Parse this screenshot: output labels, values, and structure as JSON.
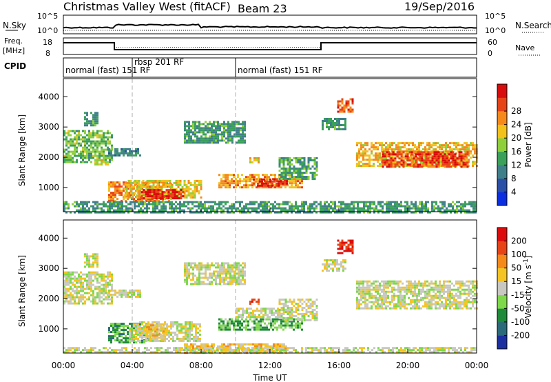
{
  "header": {
    "title": "Christmas Valley West (fitACF)",
    "beam": "Beam 23",
    "date": "19/Sep/2016"
  },
  "strips": {
    "nsky_label": "N.Sky",
    "nsearch_label": "N.Search",
    "freq_label": "Freq.",
    "freq_unit": "[MHz]",
    "nave_label": "Nave",
    "cpid_label": "CPID",
    "noise_ticks_left": [
      "10^5",
      "10^0"
    ],
    "noise_ticks_right": [
      "10^5",
      "10^0"
    ],
    "freq_ticks": [
      "18",
      "8"
    ],
    "nave_ticks": [
      "60",
      "0"
    ]
  },
  "cpid_segments": [
    {
      "start_h": 0.0,
      "end_h": 4.0,
      "label": "normal (fast)  151  RF"
    },
    {
      "start_h": 4.0,
      "end_h": 10.0,
      "label": "rbsp  201  RF"
    },
    {
      "start_h": 10.0,
      "end_h": 24.0,
      "label": "normal (fast)  151  RF"
    }
  ],
  "chart_data": [
    {
      "type": "heatmap",
      "panel": "power",
      "ylabel": "Slant Range [km]",
      "y_ticks": [
        "1000",
        "2000",
        "3000",
        "4000"
      ],
      "ylim": [
        200,
        4600
      ],
      "xlim_h": [
        0,
        24
      ],
      "colorbar": {
        "label": "Power [dB]",
        "ticks": [
          "4",
          "8",
          "12",
          "16",
          "20",
          "24",
          "28"
        ],
        "colors": [
          "#0a2ee0",
          "#2a4fa6",
          "#3f7f8a",
          "#3aa05a",
          "#8ecf3a",
          "#f2c21a",
          "#f58a1a",
          "#e64417",
          "#d80c0c"
        ]
      },
      "regions": [
        {
          "x0_h": 0.0,
          "x1_h": 2.8,
          "y0": 1850,
          "y1": 2900,
          "level": 0.45
        },
        {
          "x0_h": 1.8,
          "x1_h": 2.6,
          "y0": 1750,
          "y1": 2000,
          "level": 0.55
        },
        {
          "x0_h": 1.2,
          "x1_h": 2.0,
          "y0": 3050,
          "y1": 3500,
          "level": 0.35
        },
        {
          "x0_h": 2.6,
          "x1_h": 4.5,
          "y0": 2050,
          "y1": 2300,
          "level": 0.3
        },
        {
          "x0_h": 2.6,
          "x1_h": 6.2,
          "y0": 550,
          "y1": 1200,
          "level": 0.75
        },
        {
          "x0_h": 3.5,
          "x1_h": 8.0,
          "y0": 700,
          "y1": 1250,
          "level": 0.6
        },
        {
          "x0_h": 4.5,
          "x1_h": 7.0,
          "y0": 650,
          "y1": 950,
          "level": 0.9
        },
        {
          "x0_h": 7.0,
          "x1_h": 10.5,
          "y0": 2500,
          "y1": 3200,
          "level": 0.35
        },
        {
          "x0_h": 9.0,
          "x1_h": 13.8,
          "y0": 1000,
          "y1": 1450,
          "level": 0.7
        },
        {
          "x0_h": 11.0,
          "x1_h": 13.0,
          "y0": 1050,
          "y1": 1300,
          "level": 0.9
        },
        {
          "x0_h": 10.8,
          "x1_h": 11.4,
          "y0": 1800,
          "y1": 2000,
          "level": 0.65
        },
        {
          "x0_h": 12.5,
          "x1_h": 14.7,
          "y0": 1300,
          "y1": 2000,
          "level": 0.4
        },
        {
          "x0_h": 15.0,
          "x1_h": 16.4,
          "y0": 2900,
          "y1": 3300,
          "level": 0.35
        },
        {
          "x0_h": 15.9,
          "x1_h": 16.8,
          "y0": 3500,
          "y1": 3950,
          "level": 0.8
        },
        {
          "x0_h": 17.0,
          "x1_h": 24.0,
          "y0": 1700,
          "y1": 2500,
          "level": 0.65
        },
        {
          "x0_h": 18.5,
          "x1_h": 23.5,
          "y0": 1700,
          "y1": 2200,
          "level": 0.85
        },
        {
          "x0_h": 0.0,
          "x1_h": 24.0,
          "y0": 200,
          "y1": 550,
          "level": 0.35
        }
      ]
    },
    {
      "type": "heatmap",
      "panel": "velocity",
      "ylabel": "Slant Range [km]",
      "y_ticks": [
        "1000",
        "2000",
        "3000",
        "4000"
      ],
      "ylim": [
        200,
        4600
      ],
      "xlim_h": [
        0,
        24
      ],
      "xlabel": "Time UT",
      "x_ticks": [
        "00:00",
        "04:00",
        "08:00",
        "12:00",
        "16:00",
        "20:00",
        "00:00"
      ],
      "colorbar": {
        "label": "Velocity [m s^-1]",
        "ticks": [
          "200",
          "100",
          "50",
          "15",
          "-15",
          "-50",
          "-100",
          "-200"
        ],
        "colors": [
          "#1c2fa0",
          "#2a6a7a",
          "#1e8a3a",
          "#7ed84a",
          "#c8c8c0",
          "#f4c422",
          "#f58a1a",
          "#e64417",
          "#dc0c0c"
        ]
      },
      "regions": [
        {
          "x0_h": 0.0,
          "x1_h": 2.8,
          "y0": 1850,
          "y1": 2900,
          "level": 0.5
        },
        {
          "x0_h": 2.6,
          "x1_h": 4.5,
          "y0": 2050,
          "y1": 2300,
          "level": 0.5
        },
        {
          "x0_h": 1.2,
          "x1_h": 2.0,
          "y0": 3050,
          "y1": 3500,
          "level": 0.5
        },
        {
          "x0_h": 2.6,
          "x1_h": 5.0,
          "y0": 550,
          "y1": 1200,
          "level": 0.3
        },
        {
          "x0_h": 3.8,
          "x1_h": 8.0,
          "y0": 600,
          "y1": 1250,
          "level": 0.5
        },
        {
          "x0_h": 4.8,
          "x1_h": 5.8,
          "y0": 650,
          "y1": 1150,
          "level": 0.62
        },
        {
          "x0_h": 7.0,
          "x1_h": 10.5,
          "y0": 2500,
          "y1": 3200,
          "level": 0.5
        },
        {
          "x0_h": 9.0,
          "x1_h": 13.8,
          "y0": 1000,
          "y1": 1350,
          "level": 0.35
        },
        {
          "x0_h": 10.0,
          "x1_h": 12.5,
          "y0": 1400,
          "y1": 1700,
          "level": 0.5
        },
        {
          "x0_h": 10.8,
          "x1_h": 11.4,
          "y0": 1800,
          "y1": 2000,
          "level": 0.85
        },
        {
          "x0_h": 12.5,
          "x1_h": 14.7,
          "y0": 1300,
          "y1": 2000,
          "level": 0.5
        },
        {
          "x0_h": 15.9,
          "x1_h": 16.8,
          "y0": 3500,
          "y1": 3950,
          "level": 0.92
        },
        {
          "x0_h": 15.0,
          "x1_h": 16.4,
          "y0": 2900,
          "y1": 3300,
          "level": 0.5
        },
        {
          "x0_h": 17.0,
          "x1_h": 24.0,
          "y0": 1700,
          "y1": 2600,
          "level": 0.5
        },
        {
          "x0_h": 7.0,
          "x1_h": 13.0,
          "y0": 200,
          "y1": 520,
          "level": 0.62
        },
        {
          "x0_h": 0.0,
          "x1_h": 24.0,
          "y0": 200,
          "y1": 400,
          "level": 0.5
        }
      ]
    }
  ]
}
